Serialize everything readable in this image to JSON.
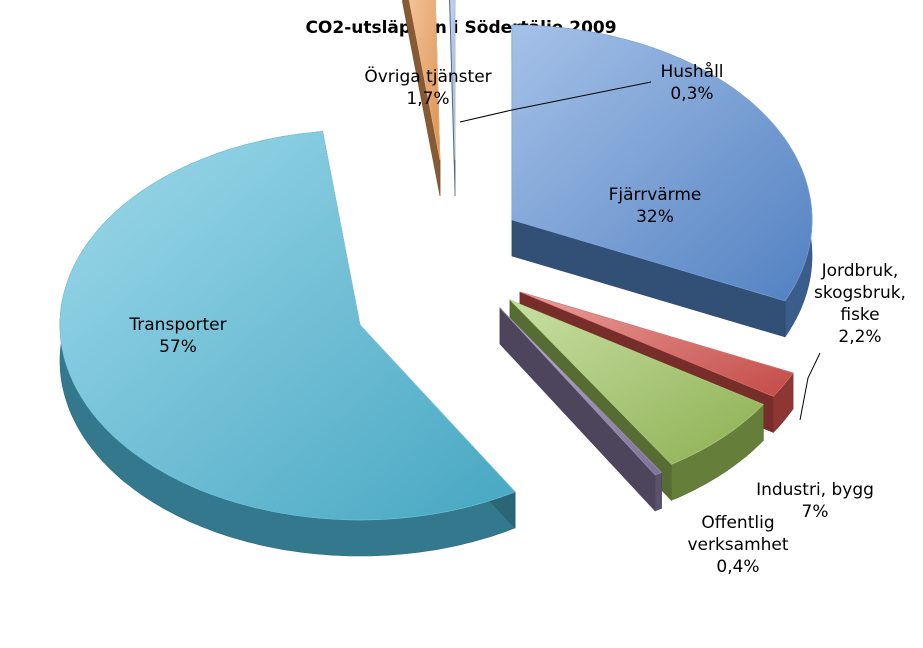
{
  "chart_data": {
    "type": "pie",
    "style": "3d-exploded",
    "title": "CO2-utsläppen i Södertälje 2009",
    "legend": "none",
    "slices": [
      {
        "key": "fjarrvarme",
        "label_lines": [
          "Fjärrvärme",
          "32%"
        ],
        "value": 32,
        "color": "#5b8fd6"
      },
      {
        "key": "jordbruk",
        "label_lines": [
          "Jordbruk,",
          "skogsbruk,",
          "fiske",
          "2,2%"
        ],
        "value": 2.2,
        "color": "#d9534f"
      },
      {
        "key": "industri",
        "label_lines": [
          "Industri, bygg",
          "7%"
        ],
        "value": 7,
        "color": "#9cc45a"
      },
      {
        "key": "offentlig",
        "label_lines": [
          "Offentlig",
          "verksamhet",
          "0,4%"
        ],
        "value": 0.4,
        "color": "#8a7ea8"
      },
      {
        "key": "transporter",
        "label_lines": [
          "Transporter",
          "57%"
        ],
        "value": 57,
        "color": "#4fb9d8"
      },
      {
        "key": "ovriga",
        "label_lines": [
          "Övriga tjänster",
          "1,7%"
        ],
        "value": 1.7,
        "color": "#f2a35e"
      },
      {
        "key": "hushall",
        "label_lines": [
          "Hushåll",
          "0,3%"
        ],
        "value": 0.3,
        "color": "#a9c6ee"
      }
    ]
  }
}
